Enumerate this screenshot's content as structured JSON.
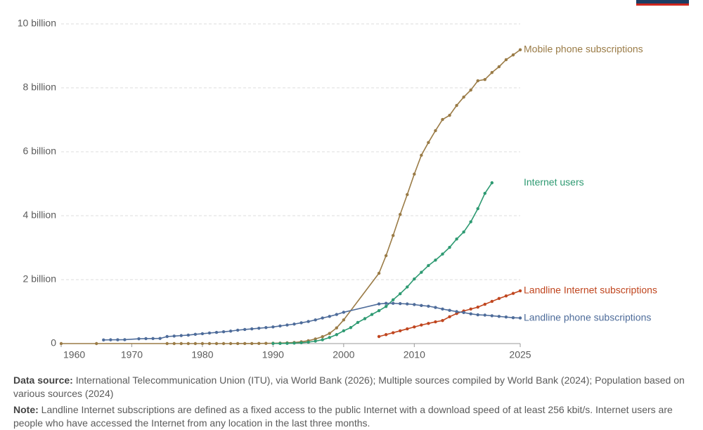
{
  "chart_data": {
    "type": "line",
    "xlim": [
      1960,
      2025
    ],
    "xticks": [
      1960,
      1970,
      1980,
      1990,
      2000,
      2010,
      2025
    ],
    "ylim": [
      0,
      10
    ],
    "yticks": [
      0,
      {
        "value": 2,
        "label": "2 billion"
      },
      {
        "value": 4,
        "label": "4 billion"
      },
      {
        "value": 6,
        "label": "6 billion"
      },
      {
        "value": 8,
        "label": "8 billion"
      },
      {
        "value": 10,
        "label": "10 billion"
      }
    ],
    "grid": true,
    "series": [
      {
        "name": "Mobile phone subscriptions",
        "color": "#9a7b46",
        "x": [
          1960,
          1965,
          1975,
          1976,
          1977,
          1978,
          1979,
          1980,
          1981,
          1982,
          1983,
          1984,
          1985,
          1986,
          1987,
          1988,
          1989,
          1990,
          1991,
          1992,
          1993,
          1994,
          1995,
          1996,
          1997,
          1998,
          1999,
          2000,
          2005,
          2006,
          2007,
          2008,
          2009,
          2010,
          2011,
          2012,
          2013,
          2014,
          2015,
          2016,
          2017,
          2018,
          2019,
          2020,
          2021,
          2022,
          2023,
          2024,
          2025
        ],
        "values": [
          0,
          0,
          0,
          0,
          0,
          0,
          0,
          0,
          0,
          0,
          0,
          0,
          0.001,
          0.001,
          0.002,
          0.004,
          0.007,
          0.011,
          0.016,
          0.023,
          0.034,
          0.056,
          0.09,
          0.145,
          0.215,
          0.318,
          0.49,
          0.74,
          2.2,
          2.75,
          3.38,
          4.04,
          4.66,
          5.3,
          5.89,
          6.29,
          6.66,
          7.01,
          7.14,
          7.45,
          7.71,
          7.93,
          8.22,
          8.26,
          8.48,
          8.66,
          8.88,
          9.03,
          9.19
        ]
      },
      {
        "name": "Internet users",
        "color": "#2e9a72",
        "x": [
          1990,
          1991,
          1992,
          1993,
          1994,
          1995,
          1996,
          1997,
          1998,
          1999,
          2000,
          2001,
          2002,
          2003,
          2004,
          2005,
          2006,
          2007,
          2008,
          2009,
          2010,
          2011,
          2012,
          2013,
          2014,
          2015,
          2016,
          2017,
          2018,
          2019,
          2020,
          2021
        ],
        "values": [
          0.003,
          0.004,
          0.007,
          0.014,
          0.025,
          0.044,
          0.077,
          0.12,
          0.19,
          0.28,
          0.4,
          0.5,
          0.66,
          0.78,
          0.91,
          1.03,
          1.16,
          1.37,
          1.56,
          1.77,
          2.02,
          2.23,
          2.44,
          2.61,
          2.8,
          3.01,
          3.27,
          3.49,
          3.81,
          4.22,
          4.7,
          5.03
        ]
      },
      {
        "name": "Landline Internet subscriptions",
        "color": "#c0461f",
        "x": [
          2005,
          2006,
          2007,
          2008,
          2009,
          2010,
          2011,
          2012,
          2013,
          2014,
          2015,
          2016,
          2017,
          2018,
          2019,
          2020,
          2021,
          2022,
          2023,
          2024,
          2025
        ],
        "values": [
          0.22,
          0.28,
          0.34,
          0.4,
          0.46,
          0.52,
          0.58,
          0.63,
          0.68,
          0.72,
          0.84,
          0.94,
          1.02,
          1.08,
          1.14,
          1.23,
          1.32,
          1.41,
          1.49,
          1.57,
          1.65
        ]
      },
      {
        "name": "Landline phone subscriptions",
        "color": "#4e6c9a",
        "x": [
          1966,
          1967,
          1968,
          1969,
          1971,
          1972,
          1973,
          1974,
          1975,
          1976,
          1977,
          1978,
          1979,
          1980,
          1981,
          1982,
          1983,
          1984,
          1985,
          1986,
          1987,
          1988,
          1989,
          1990,
          1991,
          1992,
          1993,
          1994,
          1995,
          1996,
          1997,
          1998,
          1999,
          2000,
          2005,
          2006,
          2007,
          2008,
          2009,
          2010,
          2011,
          2012,
          2013,
          2014,
          2015,
          2016,
          2017,
          2018,
          2019,
          2020,
          2021,
          2022,
          2023,
          2024,
          2025
        ],
        "values": [
          0.115,
          0.118,
          0.12,
          0.122,
          0.15,
          0.155,
          0.158,
          0.16,
          0.22,
          0.235,
          0.25,
          0.265,
          0.29,
          0.31,
          0.33,
          0.35,
          0.37,
          0.39,
          0.42,
          0.44,
          0.46,
          0.48,
          0.5,
          0.52,
          0.55,
          0.58,
          0.61,
          0.65,
          0.69,
          0.74,
          0.8,
          0.85,
          0.91,
          0.98,
          1.24,
          1.26,
          1.26,
          1.25,
          1.24,
          1.22,
          1.19,
          1.17,
          1.13,
          1.08,
          1.04,
          1.0,
          0.97,
          0.93,
          0.9,
          0.89,
          0.87,
          0.85,
          0.83,
          0.81,
          0.8
        ]
      }
    ]
  },
  "footer": {
    "source_label": "Data source:",
    "source": "International Telecommunication Union (ITU), via World Bank (2026); Multiple sources compiled by World Bank (2024); Population based on various sources (2024)",
    "note_label": "Note:",
    "note": "Landline Internet subscriptions are defined as a fixed access to the public Internet with a download speed of at least 256 kbit/s. Internet users are people who have accessed the Internet from any location in the last three months."
  }
}
